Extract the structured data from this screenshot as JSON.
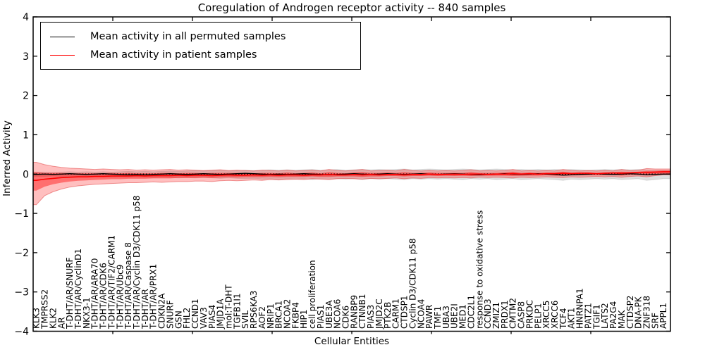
{
  "chart_data": {
    "type": "line",
    "title": "Coregulation of Androgen receptor activity -- 840 samples",
    "xlabel": "Cellular Entities",
    "ylabel": "Inferred Activity",
    "ylim": [
      -4,
      4
    ],
    "y_ticks": [
      "4",
      "3",
      "2",
      "1",
      "0",
      "−1",
      "−2",
      "−3",
      "−4"
    ],
    "y_tick_values": [
      4,
      3,
      2,
      1,
      0,
      -1,
      -2,
      -3,
      -4
    ],
    "grid": false,
    "legend_position": "upper left",
    "zero_line": {
      "value": 0,
      "style": "dotted",
      "color": "#000000"
    },
    "colors": {
      "permuted_line": "#000000",
      "patient_line": "#ff0000",
      "permuted_band": "rgba(0,0,0,0.13)",
      "patient_band_outer": "rgba(255,0,0,0.25)",
      "patient_band_inner": "rgba(255,0,0,0.42)",
      "band_edge_red": "rgba(225,70,70,0.55)",
      "band_edge_gray": "rgba(0,0,0,0.10)"
    },
    "categories": [
      "KLK3",
      "TMPRSS2",
      "KLK2",
      "AR",
      "T-DHT/AR/SNURF",
      "T-DHT/AR/CyclinD1",
      "NKX3-1",
      "T-DHT/AR/ARA70",
      "T-DHT/AR/CDK6",
      "T-DHT/AR/TIF2/CARM1",
      "T-DHT/AR/Ubc9",
      "T-DHT/AR/Caspase 8",
      "T-DHT/AR/Cyclin D3/CDK11 p58",
      "T-DHT/AR",
      "T-DHT/AR/PRX1",
      "CDKN2A",
      "SNURF",
      "GSN",
      "FHL2",
      "CCND1",
      "VAV3",
      "PIAS4",
      "JMJD1A",
      "mol:T-DHT",
      "TGFB1I1",
      "SVIL",
      "RPS6KA3",
      "AOF2",
      "NRIP1",
      "BRCA1",
      "NCOA2",
      "FKBP4",
      "HIP1",
      "cell proliferation",
      "PIAS1",
      "UBE3A",
      "NCOA6",
      "CDK6",
      "RANBP9",
      "CTNNB1",
      "PIAS3",
      "JMJD2C",
      "PTK2B",
      "CARM1",
      "CTDSP1",
      "Cyclin D3/CDK11 p58",
      "NCOA4",
      "PAWR",
      "TMF1",
      "UBA3",
      "UBE2I",
      "MED1",
      "CDC2L1",
      "response to oxidative stress",
      "CCND3",
      "ZMIZ1",
      "PRDX1",
      "CMTM2",
      "CASP8",
      "PRKDC",
      "PELP1",
      "XRCC5",
      "XRCC6",
      "TCF4",
      "AKT1",
      "HNRNPA1",
      "PATZ1",
      "TGIF1",
      "LATS2",
      "PA2G4",
      "MAK",
      "CTDSP2",
      "DNA-PK",
      "ZNF318",
      "SRF",
      "APPL1"
    ],
    "series": [
      {
        "name": "Mean activity in all permuted samples",
        "color": "#000000",
        "values": [
          -0.01,
          0.0,
          -0.01,
          0.0,
          0.01,
          0.0,
          -0.01,
          0.0,
          0.01,
          0.0,
          -0.01,
          -0.02,
          -0.01,
          -0.02,
          -0.01,
          0.0,
          0.01,
          0.0,
          -0.01,
          0.0,
          0.01,
          0.0,
          -0.01,
          0.0,
          0.01,
          0.02,
          0.01,
          0.0,
          -0.01,
          0.0,
          -0.01,
          0.0,
          0.01,
          0.0,
          -0.01,
          -0.02,
          -0.01,
          0.0,
          0.01,
          0.0,
          -0.01,
          0.0,
          0.01,
          0.0,
          -0.01,
          0.0,
          0.01,
          0.0,
          -0.01,
          0.0,
          0.01,
          0.0,
          -0.01,
          -0.02,
          -0.01,
          0.0,
          0.01,
          0.0,
          -0.01,
          0.0,
          0.01,
          0.0,
          -0.01,
          -0.03,
          -0.02,
          -0.01,
          0.0,
          0.01,
          0.0,
          -0.01,
          0.0,
          0.01,
          0.0,
          -0.02,
          -0.01,
          0.0
        ]
      },
      {
        "name": "Mean activity in patient samples",
        "color": "#ff0000",
        "values": [
          -0.16,
          -0.13,
          -0.11,
          -0.09,
          -0.08,
          -0.07,
          -0.07,
          -0.06,
          -0.06,
          -0.05,
          -0.05,
          -0.05,
          -0.04,
          -0.05,
          -0.04,
          -0.04,
          -0.04,
          -0.03,
          -0.04,
          -0.03,
          -0.03,
          -0.04,
          -0.03,
          -0.02,
          -0.03,
          -0.03,
          -0.02,
          -0.03,
          -0.02,
          -0.03,
          -0.02,
          -0.02,
          -0.03,
          -0.02,
          -0.02,
          -0.01,
          -0.02,
          -0.02,
          -0.01,
          -0.02,
          -0.01,
          -0.02,
          -0.01,
          -0.01,
          -0.02,
          -0.01,
          -0.01,
          0.0,
          -0.01,
          -0.01,
          0.0,
          -0.01,
          0.0,
          0.0,
          -0.01,
          0.0,
          0.0,
          0.01,
          0.0,
          0.01,
          0.0,
          0.01,
          0.01,
          0.02,
          0.01,
          0.02,
          0.02,
          0.01,
          0.02,
          0.03,
          0.02,
          0.03,
          0.04,
          0.04,
          0.05,
          0.06
        ]
      }
    ],
    "bands": [
      {
        "name": "permuted samples range",
        "upper": [
          0.05,
          0.05,
          0.04,
          0.05,
          0.06,
          0.05,
          0.06,
          0.05,
          0.06,
          0.05,
          0.06,
          0.07,
          0.06,
          0.07,
          0.06,
          0.07,
          0.08,
          0.07,
          0.08,
          0.09,
          0.08,
          0.09,
          0.1,
          0.08,
          0.09,
          0.1,
          0.09,
          0.1,
          0.11,
          0.1,
          0.11,
          0.1,
          0.11,
          0.12,
          0.1,
          0.11,
          0.12,
          0.1,
          0.11,
          0.12,
          0.11,
          0.12,
          0.11,
          0.12,
          0.13,
          0.11,
          0.12,
          0.13,
          0.12,
          0.11,
          0.12,
          0.13,
          0.12,
          0.11,
          0.12,
          0.13,
          0.12,
          0.11,
          0.12,
          0.11,
          0.12,
          0.11,
          0.12,
          0.11,
          0.12,
          0.11,
          0.1,
          0.11,
          0.12,
          0.11,
          0.12,
          0.11,
          0.12,
          0.11,
          0.1,
          0.1
        ],
        "lower": [
          -0.06,
          -0.06,
          -0.05,
          -0.06,
          -0.07,
          -0.06,
          -0.07,
          -0.06,
          -0.07,
          -0.08,
          -0.07,
          -0.08,
          -0.07,
          -0.08,
          -0.09,
          -0.08,
          -0.09,
          -0.1,
          -0.09,
          -0.1,
          -0.09,
          -0.1,
          -0.11,
          -0.1,
          -0.11,
          -0.12,
          -0.11,
          -0.13,
          -0.12,
          -0.14,
          -0.12,
          -0.13,
          -0.12,
          -0.14,
          -0.12,
          -0.13,
          -0.12,
          -0.13,
          -0.12,
          -0.14,
          -0.12,
          -0.13,
          -0.12,
          -0.13,
          -0.14,
          -0.12,
          -0.13,
          -0.12,
          -0.13,
          -0.12,
          -0.13,
          -0.14,
          -0.12,
          -0.13,
          -0.12,
          -0.14,
          -0.13,
          -0.12,
          -0.14,
          -0.13,
          -0.12,
          -0.13,
          -0.14,
          -0.16,
          -0.13,
          -0.14,
          -0.13,
          -0.12,
          -0.13,
          -0.12,
          -0.14,
          -0.13,
          -0.12,
          -0.16,
          -0.14,
          -0.12
        ]
      },
      {
        "name": "patient samples outer range",
        "upper": [
          0.3,
          0.24,
          0.2,
          0.17,
          0.15,
          0.14,
          0.13,
          0.12,
          0.13,
          0.12,
          0.11,
          0.12,
          0.1,
          0.11,
          0.1,
          0.11,
          0.12,
          0.1,
          0.11,
          0.1,
          0.09,
          0.1,
          0.11,
          0.09,
          0.1,
          0.09,
          0.08,
          0.1,
          0.09,
          0.08,
          0.1,
          0.08,
          0.09,
          0.1,
          0.08,
          0.12,
          0.09,
          0.08,
          0.1,
          0.12,
          0.08,
          0.09,
          0.1,
          0.08,
          0.12,
          0.09,
          0.08,
          0.09,
          0.08,
          0.09,
          0.08,
          0.09,
          0.11,
          0.08,
          0.09,
          0.08,
          0.09,
          0.12,
          0.08,
          0.09,
          0.08,
          0.09,
          0.08,
          0.12,
          0.09,
          0.08,
          0.09,
          0.08,
          0.09,
          0.08,
          0.12,
          0.09,
          0.1,
          0.14,
          0.13,
          0.13
        ],
        "lower": [
          -0.78,
          -0.55,
          -0.45,
          -0.38,
          -0.33,
          -0.3,
          -0.28,
          -0.26,
          -0.25,
          -0.24,
          -0.23,
          -0.22,
          -0.22,
          -0.21,
          -0.2,
          -0.21,
          -0.2,
          -0.19,
          -0.19,
          -0.18,
          -0.18,
          -0.19,
          -0.17,
          -0.16,
          -0.17,
          -0.16,
          -0.15,
          -0.16,
          -0.14,
          -0.15,
          -0.14,
          -0.13,
          -0.14,
          -0.12,
          -0.13,
          -0.14,
          -0.12,
          -0.11,
          -0.12,
          -0.13,
          -0.11,
          -0.12,
          -0.11,
          -0.1,
          -0.12,
          -0.1,
          -0.11,
          -0.09,
          -0.1,
          -0.09,
          -0.1,
          -0.09,
          -0.1,
          -0.08,
          -0.09,
          -0.08,
          -0.09,
          -0.1,
          -0.08,
          -0.09,
          -0.08,
          -0.07,
          -0.08,
          -0.09,
          -0.07,
          -0.08,
          -0.07,
          -0.06,
          -0.07,
          -0.06,
          -0.08,
          -0.06,
          -0.05,
          -0.07,
          -0.04,
          -0.02
        ]
      },
      {
        "name": "patient samples inner range",
        "upper": [
          0.05,
          0.03,
          0.03,
          0.03,
          0.02,
          0.02,
          0.02,
          0.02,
          0.02,
          0.03,
          0.02,
          0.03,
          0.02,
          0.02,
          0.02,
          0.03,
          0.03,
          0.02,
          0.03,
          0.03,
          0.02,
          0.03,
          0.03,
          0.03,
          0.03,
          0.02,
          0.02,
          0.03,
          0.03,
          0.02,
          0.04,
          0.02,
          0.03,
          0.04,
          0.02,
          0.05,
          0.03,
          0.02,
          0.04,
          0.05,
          0.03,
          0.03,
          0.04,
          0.03,
          0.05,
          0.03,
          0.03,
          0.04,
          0.03,
          0.03,
          0.03,
          0.03,
          0.05,
          0.03,
          0.03,
          0.03,
          0.04,
          0.06,
          0.03,
          0.04,
          0.03,
          0.04,
          0.04,
          0.06,
          0.04,
          0.04,
          0.04,
          0.03,
          0.04,
          0.04,
          0.06,
          0.05,
          0.06,
          0.08,
          0.08,
          0.09
        ],
        "lower": [
          -0.42,
          -0.32,
          -0.26,
          -0.22,
          -0.19,
          -0.17,
          -0.16,
          -0.15,
          -0.14,
          -0.13,
          -0.13,
          -0.12,
          -0.12,
          -0.12,
          -0.11,
          -0.11,
          -0.11,
          -0.1,
          -0.1,
          -0.1,
          -0.09,
          -0.1,
          -0.09,
          -0.08,
          -0.09,
          -0.08,
          -0.08,
          -0.08,
          -0.07,
          -0.08,
          -0.07,
          -0.07,
          -0.07,
          -0.06,
          -0.07,
          -0.07,
          -0.06,
          -0.06,
          -0.06,
          -0.07,
          -0.06,
          -0.06,
          -0.05,
          -0.05,
          -0.06,
          -0.05,
          -0.05,
          -0.04,
          -0.05,
          -0.04,
          -0.05,
          -0.04,
          -0.05,
          -0.04,
          -0.04,
          -0.04,
          -0.04,
          -0.05,
          -0.04,
          -0.04,
          -0.04,
          -0.03,
          -0.04,
          -0.04,
          -0.03,
          -0.03,
          -0.03,
          -0.03,
          -0.03,
          -0.02,
          -0.04,
          -0.02,
          -0.02,
          -0.03,
          -0.01,
          0.01
        ]
      }
    ]
  },
  "legend": {
    "entries": [
      {
        "label": "Mean activity in all permuted samples",
        "color": "#000000"
      },
      {
        "label": "Mean activity in patient samples",
        "color": "#ff0000"
      }
    ]
  }
}
